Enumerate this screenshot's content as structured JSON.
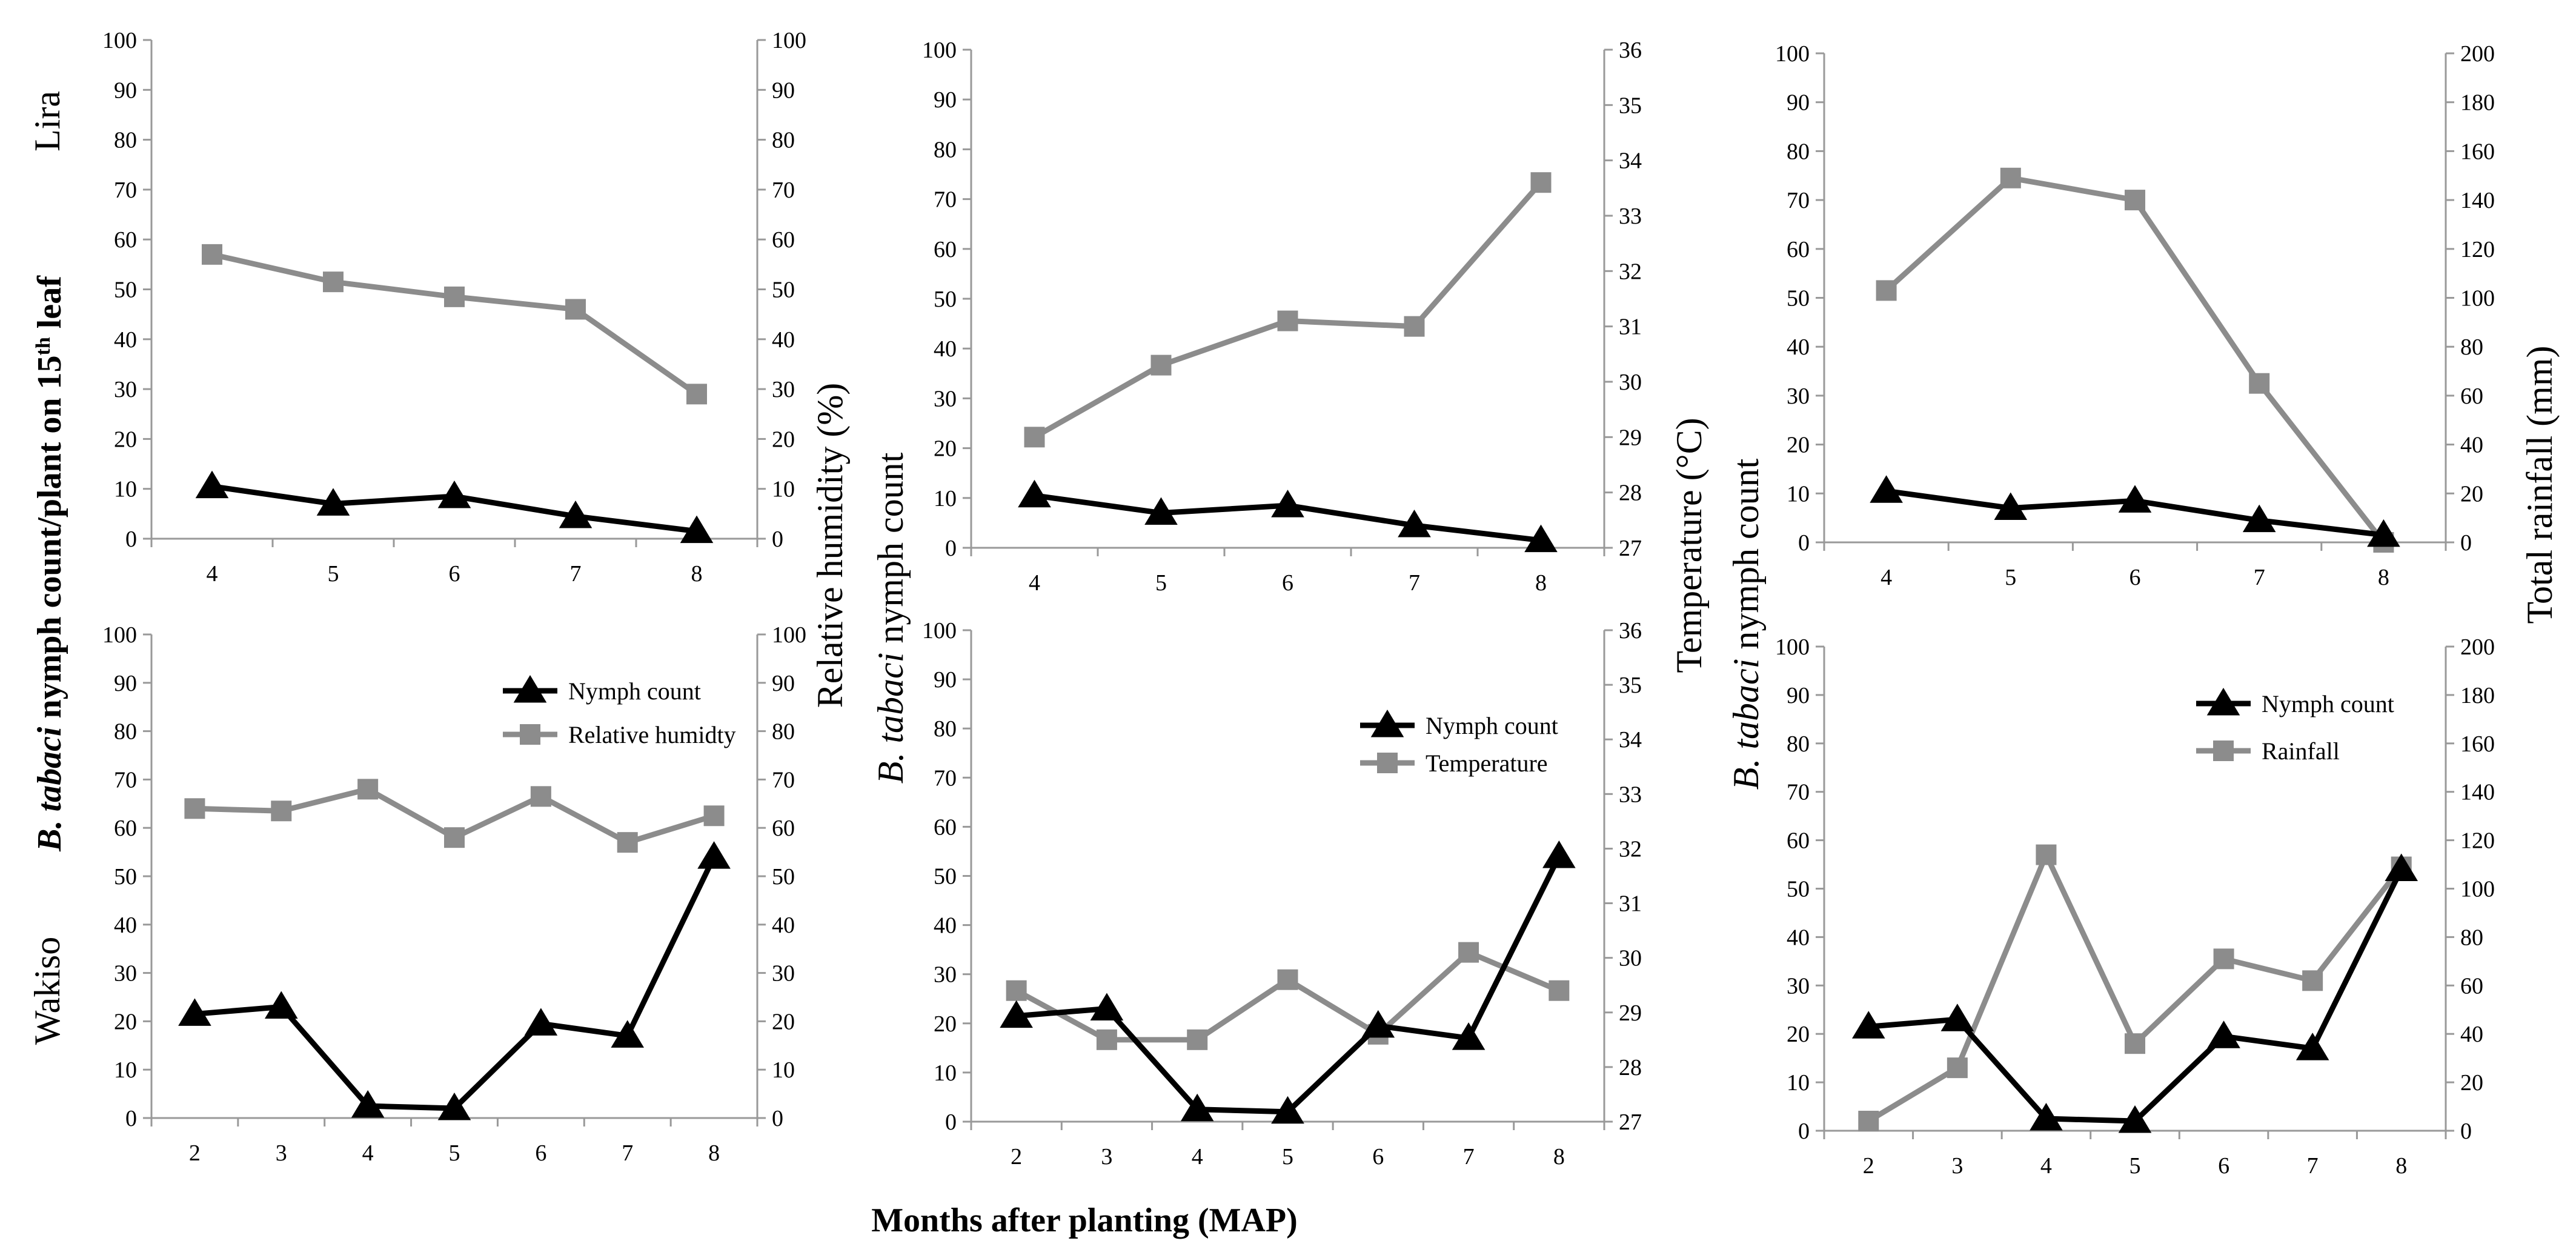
{
  "figure": {
    "shared_ylabel_bold": "B. tabaci",
    "shared_ylabel_rest": " nymph count/plant on 15",
    "shared_ylabel_sup": "th",
    "shared_ylabel_end": " leaf",
    "col_ylabel_italic": "B. tabaci",
    "col_ylabel_rest": " nymph  count",
    "xlabel": "Months after planting (MAP)",
    "rh_label": "Relative humidity (%)",
    "temp_label": "Temperature  (°C)",
    "rain_label": "Total rainfall  (mm)",
    "row_labels": [
      "Lira",
      "Wakiso"
    ]
  },
  "colors": {
    "nymph": "#000000",
    "secondary": "#8c8c8c",
    "axis": "#999999"
  },
  "chart_data": [
    {
      "id": "lira-rh",
      "type": "line",
      "location": "Lira",
      "x": [
        4,
        5,
        6,
        7,
        8
      ],
      "ylim": [
        0,
        100
      ],
      "y2lim": [
        0,
        100
      ],
      "yticks": [
        0,
        10,
        20,
        30,
        40,
        50,
        60,
        70,
        80,
        90,
        100
      ],
      "y2ticks": [
        0,
        10,
        20,
        30,
        40,
        50,
        60,
        70,
        80,
        90,
        100
      ],
      "series": [
        {
          "name": "Nymph count",
          "axis": "left",
          "marker": "triangle",
          "values": [
            10.5,
            7,
            8.5,
            4.5,
            1.5
          ]
        },
        {
          "name": "Relative humidty",
          "axis": "right",
          "marker": "square",
          "values": [
            57,
            51.5,
            48.5,
            46,
            29
          ]
        }
      ]
    },
    {
      "id": "lira-temp",
      "type": "line",
      "location": "Lira",
      "x": [
        4,
        5,
        6,
        7,
        8
      ],
      "ylim": [
        0,
        100
      ],
      "y2lim": [
        27,
        36
      ],
      "yticks": [
        0,
        10,
        20,
        30,
        40,
        50,
        60,
        70,
        80,
        90,
        100
      ],
      "y2ticks": [
        27,
        28,
        29,
        30,
        31,
        32,
        33,
        34,
        35,
        36
      ],
      "series": [
        {
          "name": "Nymph count",
          "axis": "left",
          "marker": "triangle",
          "values": [
            10.5,
            7,
            8.5,
            4.5,
            1.5
          ]
        },
        {
          "name": "Temperature",
          "axis": "right",
          "marker": "square",
          "values": [
            29.0,
            30.3,
            31.1,
            31.0,
            33.6
          ]
        }
      ]
    },
    {
      "id": "lira-rain",
      "type": "line",
      "location": "Lira",
      "x": [
        4,
        5,
        6,
        7,
        8
      ],
      "ylim": [
        0,
        100
      ],
      "y2lim": [
        0,
        200
      ],
      "yticks": [
        0,
        10,
        20,
        30,
        40,
        50,
        60,
        70,
        80,
        90,
        100
      ],
      "y2ticks": [
        0,
        20,
        40,
        60,
        80,
        100,
        120,
        140,
        160,
        180,
        200
      ],
      "series": [
        {
          "name": "Nymph count",
          "axis": "left",
          "marker": "triangle",
          "values": [
            10.5,
            7,
            8.5,
            4.5,
            1.5
          ]
        },
        {
          "name": "Rainfall",
          "axis": "right",
          "marker": "square",
          "values": [
            103,
            149,
            140,
            65,
            0
          ]
        }
      ]
    },
    {
      "id": "wakiso-rh",
      "type": "line",
      "location": "Wakiso",
      "x": [
        2,
        3,
        4,
        5,
        6,
        7,
        8
      ],
      "ylim": [
        0,
        100
      ],
      "y2lim": [
        0,
        100
      ],
      "yticks": [
        0,
        10,
        20,
        30,
        40,
        50,
        60,
        70,
        80,
        90,
        100
      ],
      "y2ticks": [
        0,
        10,
        20,
        30,
        40,
        50,
        60,
        70,
        80,
        90,
        100
      ],
      "legend": [
        "Nymph count",
        "Relative humidty"
      ],
      "series": [
        {
          "name": "Nymph count",
          "axis": "left",
          "marker": "triangle",
          "values": [
            21.5,
            23,
            2.5,
            2,
            19.5,
            17,
            54
          ]
        },
        {
          "name": "Relative humidty",
          "axis": "right",
          "marker": "square",
          "values": [
            64,
            63.5,
            68,
            58,
            66.5,
            57,
            62.5
          ]
        }
      ]
    },
    {
      "id": "wakiso-temp",
      "type": "line",
      "location": "Wakiso",
      "x": [
        2,
        3,
        4,
        5,
        6,
        7,
        8
      ],
      "ylim": [
        0,
        100
      ],
      "y2lim": [
        27,
        36
      ],
      "yticks": [
        0,
        10,
        20,
        30,
        40,
        50,
        60,
        70,
        80,
        90,
        100
      ],
      "y2ticks": [
        27,
        28,
        29,
        30,
        31,
        32,
        33,
        34,
        35,
        36
      ],
      "legend": [
        "Nymph count",
        "Temperature"
      ],
      "series": [
        {
          "name": "Nymph count",
          "axis": "left",
          "marker": "triangle",
          "values": [
            21.5,
            23,
            2.5,
            2,
            19.5,
            17,
            54
          ]
        },
        {
          "name": "Temperature",
          "axis": "right",
          "marker": "square",
          "values": [
            29.4,
            28.5,
            28.5,
            29.6,
            28.6,
            30.1,
            29.4
          ]
        }
      ]
    },
    {
      "id": "wakiso-rain",
      "type": "line",
      "location": "Wakiso",
      "x": [
        2,
        3,
        4,
        5,
        6,
        7,
        8
      ],
      "ylim": [
        0,
        100
      ],
      "y2lim": [
        0,
        200
      ],
      "yticks": [
        0,
        10,
        20,
        30,
        40,
        50,
        60,
        70,
        80,
        90,
        100
      ],
      "y2ticks": [
        0,
        20,
        40,
        60,
        80,
        100,
        120,
        140,
        160,
        180,
        200
      ],
      "legend": [
        "Nymph count",
        "Rainfall"
      ],
      "series": [
        {
          "name": "Nymph count",
          "axis": "left",
          "marker": "triangle",
          "values": [
            21.5,
            23,
            2.5,
            2,
            19.5,
            17,
            54
          ]
        },
        {
          "name": "Rainfall",
          "axis": "right",
          "marker": "square",
          "values": [
            4,
            26,
            114,
            36,
            71,
            62,
            109
          ]
        }
      ]
    }
  ]
}
